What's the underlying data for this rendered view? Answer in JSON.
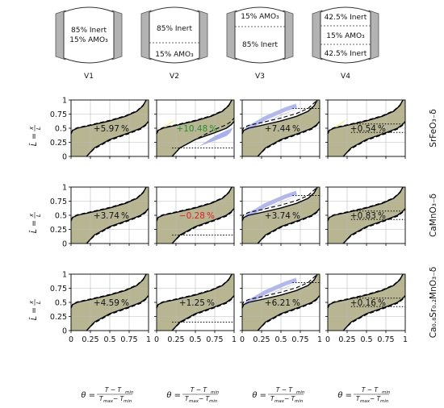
{
  "reactors": [
    {
      "name": "V1",
      "sections": [
        "85% Inert",
        "15% AMO₃"
      ]
    },
    {
      "name": "V2",
      "sections": [
        "85% Inert",
        "15% AMO₃"
      ]
    },
    {
      "name": "V3",
      "sections": [
        "15% AMO₃",
        "85% Inert"
      ]
    },
    {
      "name": "V4",
      "sections": [
        "42.5% Inert",
        "15% AMO₃",
        "42.5% Inert"
      ]
    }
  ],
  "materials": [
    "SrFeO₃₋δ",
    "CaMnO₃₋δ",
    "Ca₀.₈Sr₀.₂MnO₃₋δ"
  ],
  "y_axis_label": "L̄ = x/L",
  "x_axis_label": "θ = (T − T_min)/(T_max − T_min)",
  "x_ticks": [
    "0",
    "0.25",
    "0.5",
    "0.75",
    "1"
  ],
  "y_ticks": [
    "0",
    "0.25",
    "0.5",
    "0.75",
    "1"
  ],
  "colors": {
    "fill": "#b7b592",
    "gain_fill": "#aab0ea",
    "loss_fill": "#f2ee7e",
    "positive_text": "#2a8f2a",
    "negative_text": "#e02020",
    "grid": "#bcbcbc",
    "reactor_side": "#9a9a9a"
  },
  "chart_data": {
    "type": "area",
    "xlim": [
      0,
      1
    ],
    "ylim": [
      0,
      1
    ],
    "grid": true,
    "panels": [
      {
        "reactor": "V1",
        "material": "SrFeO₃₋δ",
        "annotation": "+5.97 %",
        "sign": "neutral",
        "highlight": "none",
        "dotted_levels": []
      },
      {
        "reactor": "V2",
        "material": "SrFeO₃₋δ",
        "annotation": "+10.48 %",
        "sign": "positive",
        "highlight": "bottom-blue+top-yellow",
        "dotted_levels": [
          0.15
        ]
      },
      {
        "reactor": "V3",
        "material": "SrFeO₃₋δ",
        "annotation": "+7.44 %",
        "sign": "neutral",
        "highlight": "top-blue",
        "dotted_levels": [
          0.85
        ]
      },
      {
        "reactor": "V4",
        "material": "SrFeO₃₋δ",
        "annotation": "+0.54 %",
        "sign": "neutral",
        "highlight": "top-yellow",
        "dotted_levels": [
          0.575,
          0.425
        ]
      },
      {
        "reactor": "V1",
        "material": "CaMnO₃₋δ",
        "annotation": "+3.74 %",
        "sign": "neutral",
        "highlight": "none",
        "dotted_levels": []
      },
      {
        "reactor": "V2",
        "material": "CaMnO₃₋δ",
        "annotation": "−0.28 %",
        "sign": "negative",
        "highlight": "none",
        "dotted_levels": [
          0.15
        ]
      },
      {
        "reactor": "V3",
        "material": "CaMnO₃₋δ",
        "annotation": "+3.74 %",
        "sign": "neutral",
        "highlight": "top-blue",
        "dotted_levels": [
          0.85
        ]
      },
      {
        "reactor": "V4",
        "material": "CaMnO₃₋δ",
        "annotation": "+0.83 %",
        "sign": "neutral",
        "highlight": "none",
        "dotted_levels": [
          0.575,
          0.425
        ]
      },
      {
        "reactor": "V1",
        "material": "Ca₀.₈Sr₀.₂MnO₃₋δ",
        "annotation": "+4.59 %",
        "sign": "neutral",
        "highlight": "none",
        "dotted_levels": []
      },
      {
        "reactor": "V2",
        "material": "Ca₀.₈Sr₀.₂MnO₃₋δ",
        "annotation": "+1.25 %",
        "sign": "neutral",
        "highlight": "none",
        "dotted_levels": [
          0.15
        ]
      },
      {
        "reactor": "V3",
        "material": "Ca₀.₈Sr₀.₂MnO₃₋δ",
        "annotation": "+6.21 %",
        "sign": "neutral",
        "highlight": "top-blue",
        "dotted_levels": [
          0.85
        ]
      },
      {
        "reactor": "V4",
        "material": "Ca₀.₈Sr₀.₂MnO₃₋δ",
        "annotation": "+0.16 %",
        "sign": "neutral",
        "highlight": "bottom-yellow",
        "dotted_levels": [
          0.575,
          0.425
        ]
      }
    ],
    "curves": {
      "upper_solid": [
        [
          0,
          0.4
        ],
        [
          0.02,
          0.46
        ],
        [
          0.08,
          0.5
        ],
        [
          0.25,
          0.55
        ],
        [
          0.5,
          0.63
        ],
        [
          0.7,
          0.71
        ],
        [
          0.85,
          0.8
        ],
        [
          0.93,
          0.9
        ],
        [
          0.97,
          1.0
        ]
      ],
      "lower_solid": [
        [
          0.2,
          0.0
        ],
        [
          0.3,
          0.15
        ],
        [
          0.5,
          0.3
        ],
        [
          0.75,
          0.42
        ],
        [
          0.9,
          0.5
        ],
        [
          0.96,
          0.56
        ],
        [
          1.0,
          0.62
        ]
      ]
    }
  }
}
